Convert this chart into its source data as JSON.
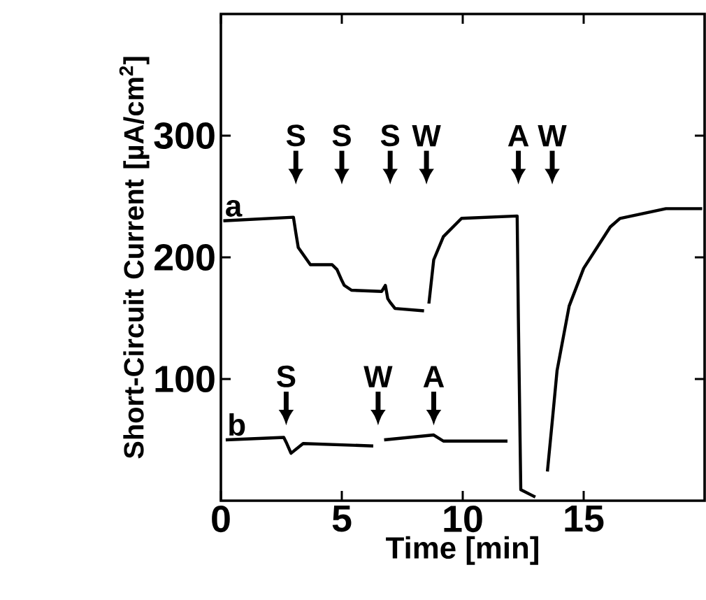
{
  "chart_data": {
    "type": "line",
    "xlabel": "Time [min]",
    "ylabel": "Short-Circuit Current [µA/cm$^{2}$]",
    "xlim": [
      0,
      20
    ],
    "ylim": [
      0,
      400
    ],
    "xticks": [
      0,
      5,
      10,
      15
    ],
    "yticks": [
      100,
      200,
      300
    ],
    "series": [
      {
        "name": "a",
        "color": "#000000",
        "x": [
          0.1,
          3.0,
          3.1,
          3.2,
          3.7,
          4.6,
          4.8,
          5.0,
          5.1,
          5.4,
          6.65,
          6.8,
          6.9,
          7.0,
          7.2,
          8.4,
          8.5,
          8.6,
          8.8,
          9.2,
          9.95,
          12.25,
          12.3,
          12.4,
          13.0,
          13.2,
          13.5,
          13.7,
          13.9,
          14.4,
          15.0,
          16.1,
          16.5,
          18.4,
          19.9
        ],
        "values": [
          230,
          233,
          220,
          208,
          194,
          194,
          190,
          181,
          177,
          173,
          172,
          177,
          166,
          163,
          158,
          156,
          null,
          162,
          198,
          217,
          232,
          234,
          150,
          9,
          3,
          null,
          24,
          65,
          107,
          160,
          191,
          225,
          232,
          240,
          240
        ]
      },
      {
        "name": "b",
        "color": "#000000",
        "x": [
          0.2,
          2.6,
          2.7,
          2.9,
          3.4,
          6.3,
          6.5,
          6.75,
          8.8,
          9.2,
          11.85
        ],
        "values": [
          50,
          52,
          48,
          39,
          47,
          45,
          null,
          50,
          54,
          49,
          49
        ]
      }
    ],
    "annotations": [
      "S",
      "S",
      "S",
      "W",
      "A",
      "W",
      "S",
      "W",
      "A"
    ]
  }
}
